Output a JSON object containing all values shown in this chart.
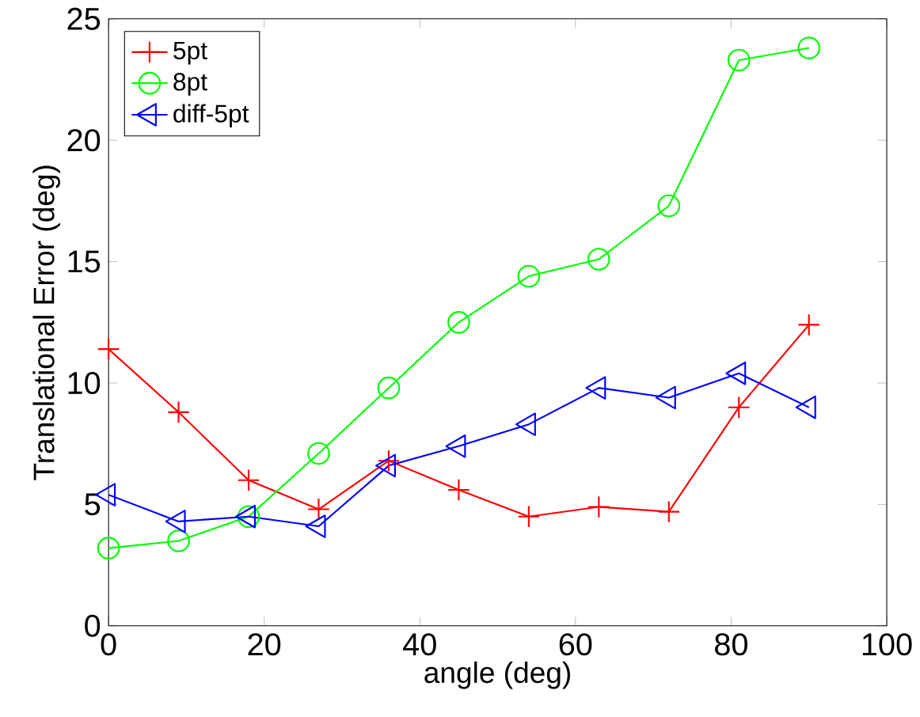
{
  "chart_data": {
    "type": "line",
    "xlabel": "angle (deg)",
    "ylabel": "Translational Error (deg)",
    "x": [
      0,
      9,
      18,
      27,
      36,
      45,
      54,
      63,
      72,
      81,
      90
    ],
    "series": [
      {
        "name": "5pt",
        "color": "#ff0000",
        "marker": "cross",
        "values": [
          11.4,
          8.8,
          6.0,
          4.8,
          6.8,
          5.6,
          4.5,
          4.9,
          4.7,
          9.0,
          12.4
        ]
      },
      {
        "name": "8pt",
        "color": "#00ff00",
        "marker": "circle",
        "values": [
          3.2,
          3.5,
          4.5,
          7.1,
          9.8,
          12.5,
          14.4,
          15.1,
          17.3,
          23.3,
          23.8
        ]
      },
      {
        "name": "diff-5pt",
        "color": "#0000ff",
        "marker": "triangle",
        "values": [
          5.4,
          4.3,
          4.5,
          4.1,
          6.6,
          7.4,
          8.3,
          9.8,
          9.4,
          10.4,
          9.0
        ]
      }
    ],
    "xlim": [
      0,
      100
    ],
    "xticks": [
      0,
      20,
      40,
      60,
      80,
      100
    ],
    "ylim": [
      0,
      25
    ],
    "yticks": [
      0,
      5,
      10,
      15,
      20,
      25
    ],
    "legend": "top left",
    "grid": false,
    "line_style": "solid"
  }
}
